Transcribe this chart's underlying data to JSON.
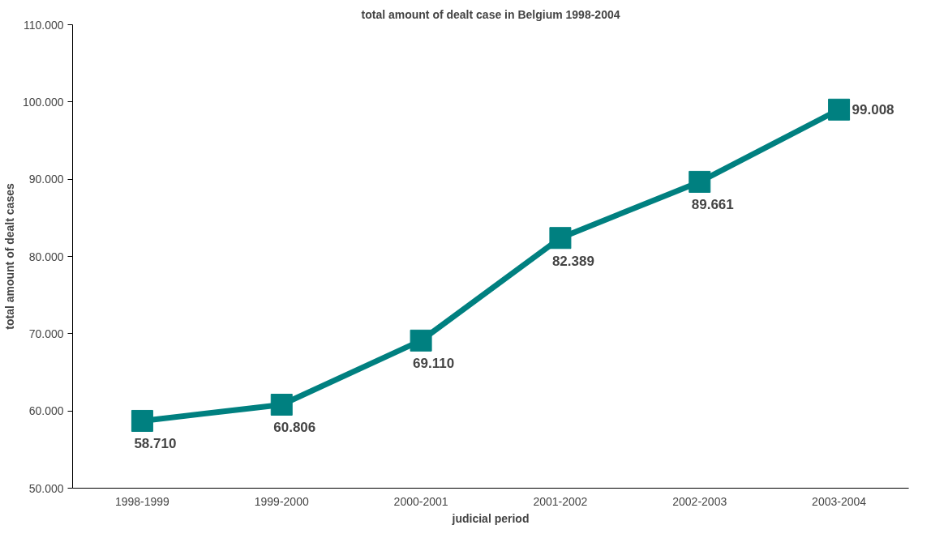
{
  "chart_data": {
    "type": "line",
    "title": "total amount of dealt case in Belgium 1998-2004",
    "xlabel": "judicial period",
    "ylabel": "total amount of dealt cases",
    "categories": [
      "1998-1999",
      "1999-2000",
      "2000-2001",
      "2001-2002",
      "2002-2003",
      "2003-2004"
    ],
    "series": [
      {
        "color": "#008080",
        "values": [
          58710,
          60806,
          69110,
          82389,
          89661,
          99008
        ],
        "value_labels": [
          "58.710",
          "60.806",
          "69.110",
          "82.389",
          "89.661",
          "99.008"
        ]
      }
    ],
    "ylim": [
      50000,
      110000
    ],
    "yticks": [
      {
        "value": 50000,
        "label": "50.000"
      },
      {
        "value": 60000,
        "label": "60.000"
      },
      {
        "value": 70000,
        "label": "70.000"
      },
      {
        "value": 80000,
        "label": "80.000"
      },
      {
        "value": 90000,
        "label": "90.000"
      },
      {
        "value": 100000,
        "label": "100.000"
      },
      {
        "value": 110000,
        "label": "110.000"
      }
    ],
    "marker": "square",
    "line_style": "solid",
    "grid": false
  }
}
